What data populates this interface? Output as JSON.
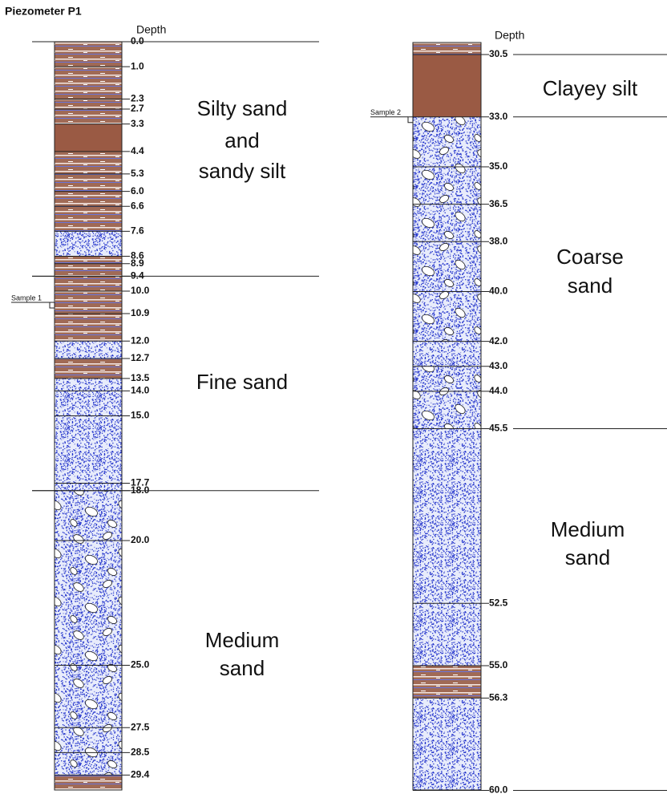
{
  "header": {
    "title": "Piezometer P1"
  },
  "columns": [
    {
      "depth_heading": "Depth",
      "depths": [
        "0.0",
        "1.0",
        "2.3",
        "2.7",
        "3.3",
        "4.4",
        "5.3",
        "6.0",
        "6.6",
        "7.6",
        "8.6",
        "8.9",
        "9.4",
        "10.0",
        "10.9",
        "12.0",
        "12.7",
        "13.5",
        "14.0",
        "15.0",
        "17.7",
        "18.0",
        "20.0",
        "25.0",
        "27.5",
        "28.5",
        "29.4"
      ],
      "sample": "Sample 1",
      "units": [
        [
          "Silty sand",
          "and",
          "sandy silt"
        ],
        [
          "Fine sand"
        ],
        [
          "Medium",
          "sand"
        ]
      ]
    },
    {
      "depth_heading": "Depth",
      "depths": [
        "30.5",
        "33.0",
        "35.0",
        "36.5",
        "38.0",
        "40.0",
        "42.0",
        "43.0",
        "44.0",
        "45.5",
        "52.5",
        "55.0",
        "56.3",
        "60.0"
      ],
      "sample": "Sample 2",
      "units": [
        [
          "Clayey silt"
        ],
        [
          "Coarse",
          "sand"
        ],
        [
          "Medium",
          "sand"
        ]
      ]
    }
  ]
}
